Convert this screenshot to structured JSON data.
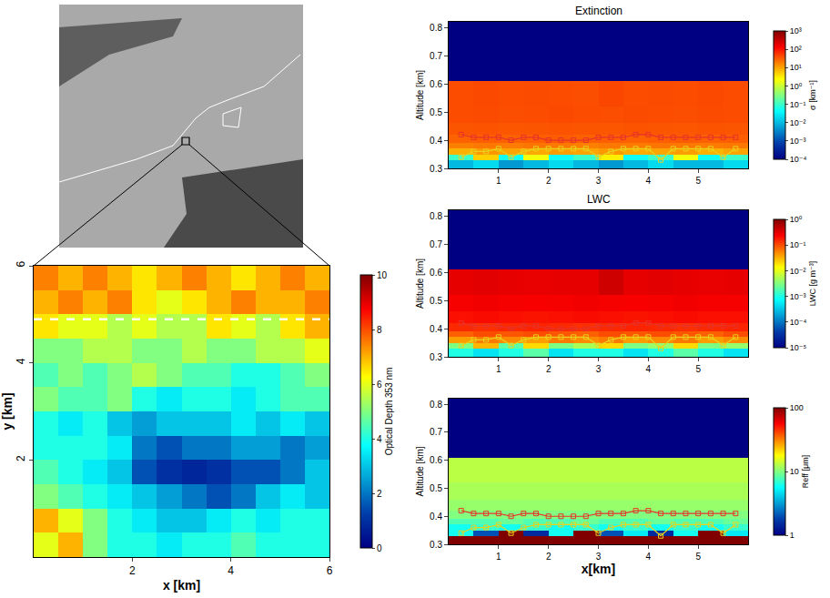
{
  "chart_data": [
    {
      "type": "heatmap",
      "x_label": "x [km]",
      "y_label": "y [km]",
      "xlim": [
        0,
        6
      ],
      "ylim": [
        0,
        6
      ],
      "xticks": [
        2,
        4,
        6
      ],
      "yticks": [
        2,
        4,
        6
      ],
      "color": "Jet",
      "x_edges": [
        0,
        0.5,
        1,
        1.5,
        2,
        2.5,
        3,
        3.5,
        4,
        4.5,
        5,
        5.5,
        6
      ],
      "y_edges": [
        0,
        0.5,
        1,
        1.5,
        2,
        2.5,
        3,
        3.5,
        4,
        4.5,
        5,
        5.5,
        6
      ],
      "z": [
        [
          6,
          7,
          5,
          4,
          4,
          3.5,
          4,
          4,
          4.5,
          4,
          4,
          4
        ],
        [
          7,
          6,
          5,
          4,
          3.5,
          3,
          3,
          3.5,
          4,
          3.5,
          4,
          4
        ],
        [
          5,
          4.5,
          4,
          3.5,
          3,
          2.5,
          2,
          1.5,
          2,
          3,
          3.5,
          3
        ],
        [
          4.5,
          4,
          3.5,
          3,
          1.5,
          1,
          0.8,
          1,
          1.5,
          1.5,
          2,
          3
        ],
        [
          4,
          4,
          4,
          3.5,
          2,
          1.5,
          2,
          2,
          2.5,
          2.5,
          2,
          2.5
        ],
        [
          4,
          3.5,
          4,
          3,
          2.5,
          3,
          3,
          3,
          3.5,
          3,
          3.5,
          3
        ],
        [
          5,
          4.5,
          4.5,
          5,
          4,
          3.5,
          4,
          4,
          3.5,
          4,
          4.5,
          4.5
        ],
        [
          4.5,
          5,
          4.5,
          5,
          5.5,
          5,
          4.5,
          4.5,
          4,
          4,
          4.5,
          5
        ],
        [
          5,
          5,
          5.5,
          5.5,
          5,
          5,
          5.5,
          5,
          5,
          5.5,
          5.5,
          6
        ],
        [
          6.5,
          6,
          6,
          5.5,
          6,
          5.5,
          5.5,
          6.5,
          6,
          5.5,
          6.5,
          7
        ],
        [
          7,
          7.5,
          7,
          7.5,
          6.5,
          6,
          6.5,
          7,
          7.5,
          7,
          7,
          7.5
        ],
        [
          7.5,
          7,
          7.5,
          7,
          6.5,
          7,
          7.5,
          7,
          6.5,
          7,
          7.5,
          7
        ]
      ],
      "colorbar": {
        "title": "Optical Depth 353 nm",
        "range": [
          0,
          10
        ],
        "ticks": [
          0,
          2,
          4,
          6,
          8,
          10
        ]
      },
      "transect_y": 4.9
    },
    {
      "type": "heatmap",
      "title": "Extinction",
      "log": true,
      "y_label": "Altitude [km]",
      "xlim": [
        0,
        6
      ],
      "ylim": [
        0.3,
        0.82
      ],
      "xticks": [
        1,
        2,
        3,
        4,
        5
      ],
      "yticks": [
        0.3,
        0.4,
        0.5,
        0.6,
        0.7,
        0.8
      ],
      "color": "Jet",
      "x_edges": [
        0,
        0.5,
        1,
        1.5,
        2,
        2.5,
        3,
        3.5,
        4,
        4.5,
        5,
        5.5,
        6
      ],
      "y_edges": [
        0.3,
        0.33,
        0.35,
        0.37,
        0.39,
        0.42,
        0.46,
        0.52,
        0.61,
        0.82
      ],
      "z": [
        [
          0.01,
          0.02,
          0.005,
          0.01,
          0.02,
          0.01,
          0.005,
          0.01,
          0.02,
          0.01,
          0.01,
          0.02
        ],
        [
          0.1,
          5,
          0.05,
          2,
          0.05,
          0.1,
          3,
          0.05,
          0.1,
          2,
          0.05,
          0.1
        ],
        [
          8,
          12,
          10,
          9,
          11,
          10,
          12,
          9,
          10,
          11,
          8,
          10
        ],
        [
          18,
          20,
          19,
          21,
          20,
          18,
          20,
          19,
          21,
          20,
          19,
          20
        ],
        [
          28,
          30,
          29,
          30,
          31,
          29,
          30,
          28,
          30,
          31,
          29,
          30
        ],
        [
          35,
          36,
          34,
          35,
          36,
          35,
          34,
          36,
          35,
          34,
          36,
          35
        ],
        [
          40,
          41,
          39,
          40,
          42,
          40,
          39,
          41,
          40,
          39,
          41,
          40
        ],
        [
          40,
          42,
          40,
          41,
          40,
          39,
          44,
          40,
          41,
          40,
          42,
          40
        ],
        [
          0.0001,
          0.0001,
          0.0001,
          0.0001,
          0.0001,
          0.0001,
          0.0001,
          0.0001,
          0.0001,
          0.0001,
          0.0001,
          0.0001
        ]
      ],
      "colorbar": {
        "title": "σ [km⁻¹]",
        "range": [
          0.0001,
          1000
        ],
        "ticks": [
          {
            "value": 0.0001,
            "label": "10⁻⁴"
          },
          {
            "value": 0.001,
            "label": "10⁻³"
          },
          {
            "value": 0.01,
            "label": "10⁻²"
          },
          {
            "value": 0.1,
            "label": "10⁻¹"
          },
          {
            "value": 1,
            "label": "10⁰"
          },
          {
            "value": 10,
            "label": "10¹"
          },
          {
            "value": 100,
            "label": "10²"
          },
          {
            "value": 1000,
            "label": "10³"
          }
        ]
      },
      "series": [
        {
          "color": "#e8332a",
          "marker": "square",
          "x": [
            0.25,
            0.5,
            0.75,
            1,
            1.25,
            1.5,
            1.75,
            2,
            2.25,
            2.5,
            2.75,
            3,
            3.25,
            3.5,
            3.75,
            4,
            4.25,
            4.5,
            4.75,
            5,
            5.25,
            5.5,
            5.75
          ],
          "values": [
            0.42,
            0.41,
            0.41,
            0.41,
            0.4,
            0.41,
            0.41,
            0.4,
            0.4,
            0.4,
            0.4,
            0.41,
            0.41,
            0.41,
            0.42,
            0.42,
            0.41,
            0.41,
            0.41,
            0.41,
            0.41,
            0.41,
            0.41
          ]
        },
        {
          "color": "#e8d21d",
          "marker": "square",
          "x": [
            0.25,
            0.5,
            0.75,
            1,
            1.25,
            1.5,
            1.75,
            2,
            2.25,
            2.5,
            2.75,
            3,
            3.25,
            3.5,
            3.75,
            4,
            4.25,
            4.5,
            4.75,
            5,
            5.25,
            5.5,
            5.75
          ],
          "values": [
            0.34,
            0.36,
            0.36,
            0.37,
            0.34,
            0.36,
            0.37,
            0.37,
            0.37,
            0.37,
            0.37,
            0.34,
            0.36,
            0.37,
            0.37,
            0.37,
            0.33,
            0.37,
            0.37,
            0.37,
            0.37,
            0.34,
            0.37
          ]
        }
      ]
    },
    {
      "type": "heatmap",
      "title": "LWC",
      "log": true,
      "y_label": "Altitude [km]",
      "xlim": [
        0,
        6
      ],
      "ylim": [
        0.3,
        0.82
      ],
      "xticks": [
        1,
        2,
        3,
        4,
        5
      ],
      "yticks": [
        0.3,
        0.4,
        0.5,
        0.6,
        0.7,
        0.8
      ],
      "color": "Jet",
      "x_edges": [
        0,
        0.5,
        1,
        1.5,
        2,
        2.5,
        3,
        3.5,
        4,
        4.5,
        5,
        5.5,
        6
      ],
      "y_edges": [
        0.3,
        0.33,
        0.35,
        0.37,
        0.39,
        0.42,
        0.46,
        0.52,
        0.61,
        0.82
      ],
      "z": [
        [
          0.001,
          0.0005,
          0.001,
          0.002,
          0.0005,
          0.001,
          0.001,
          0.0005,
          0.001,
          0.002,
          0.001,
          0.0005
        ],
        [
          0.003,
          0.03,
          0.002,
          0.02,
          0.003,
          0.005,
          0.02,
          0.003,
          0.004,
          0.02,
          0.003,
          0.004
        ],
        [
          0.04,
          0.06,
          0.05,
          0.04,
          0.06,
          0.05,
          0.06,
          0.04,
          0.05,
          0.06,
          0.04,
          0.05
        ],
        [
          0.08,
          0.1,
          0.09,
          0.1,
          0.09,
          0.08,
          0.1,
          0.09,
          0.1,
          0.09,
          0.08,
          0.1
        ],
        [
          0.15,
          0.14,
          0.15,
          0.16,
          0.15,
          0.14,
          0.15,
          0.16,
          0.15,
          0.14,
          0.15,
          0.16
        ],
        [
          0.2,
          0.21,
          0.2,
          0.19,
          0.2,
          0.21,
          0.2,
          0.19,
          0.2,
          0.21,
          0.2,
          0.2
        ],
        [
          0.25,
          0.26,
          0.25,
          0.24,
          0.25,
          0.26,
          0.25,
          0.24,
          0.25,
          0.26,
          0.25,
          0.25
        ],
        [
          0.3,
          0.31,
          0.3,
          0.29,
          0.3,
          0.3,
          0.4,
          0.3,
          0.31,
          0.3,
          0.29,
          0.3
        ],
        [
          1e-05,
          1e-05,
          1e-05,
          1e-05,
          1e-05,
          1e-05,
          1e-05,
          1e-05,
          1e-05,
          1e-05,
          1e-05,
          1e-05
        ]
      ],
      "colorbar": {
        "title": "LWC [g m⁻³]",
        "range": [
          1e-05,
          1
        ],
        "ticks": [
          {
            "value": 1e-05,
            "label": "10⁻⁵"
          },
          {
            "value": 0.0001,
            "label": "10⁻⁴"
          },
          {
            "value": 0.001,
            "label": "10⁻³"
          },
          {
            "value": 0.01,
            "label": "10⁻²"
          },
          {
            "value": 0.1,
            "label": "10⁻¹"
          },
          {
            "value": 1,
            "label": "10⁰"
          }
        ]
      },
      "series": [
        {
          "color": "#e8332a",
          "marker": "square",
          "x": [
            0.25,
            0.5,
            0.75,
            1,
            1.25,
            1.5,
            1.75,
            2,
            2.25,
            2.5,
            2.75,
            3,
            3.25,
            3.5,
            3.75,
            4,
            4.25,
            4.5,
            4.75,
            5,
            5.25,
            5.5,
            5.75
          ],
          "values": [
            0.42,
            0.41,
            0.41,
            0.41,
            0.4,
            0.41,
            0.41,
            0.4,
            0.4,
            0.4,
            0.4,
            0.41,
            0.41,
            0.41,
            0.42,
            0.42,
            0.41,
            0.41,
            0.41,
            0.41,
            0.41,
            0.41,
            0.41
          ]
        },
        {
          "color": "#e8d21d",
          "marker": "square",
          "x": [
            0.25,
            0.5,
            0.75,
            1,
            1.25,
            1.5,
            1.75,
            2,
            2.25,
            2.5,
            2.75,
            3,
            3.25,
            3.5,
            3.75,
            4,
            4.25,
            4.5,
            4.75,
            5,
            5.25,
            5.5,
            5.75
          ],
          "values": [
            0.34,
            0.36,
            0.36,
            0.37,
            0.34,
            0.36,
            0.37,
            0.37,
            0.37,
            0.37,
            0.37,
            0.34,
            0.36,
            0.37,
            0.37,
            0.37,
            0.33,
            0.37,
            0.37,
            0.37,
            0.37,
            0.34,
            0.37
          ]
        }
      ]
    },
    {
      "type": "heatmap",
      "log": true,
      "x_label": "x[km]",
      "y_label": "Altitude [km]",
      "xlim": [
        0,
        6
      ],
      "ylim": [
        0.3,
        0.82
      ],
      "xticks": [
        1,
        2,
        3,
        4,
        5
      ],
      "yticks": [
        0.3,
        0.4,
        0.5,
        0.6,
        0.7,
        0.8
      ],
      "color": "Jet",
      "x_edges": [
        0,
        0.5,
        1,
        1.5,
        2,
        2.5,
        3,
        3.5,
        4,
        4.5,
        5,
        5.5,
        6
      ],
      "y_edges": [
        0.3,
        0.33,
        0.35,
        0.37,
        0.39,
        0.42,
        0.46,
        0.52,
        0.61,
        0.82
      ],
      "z": [
        [
          100,
          100,
          100,
          100,
          100,
          100,
          100,
          100,
          100,
          100,
          100,
          100
        ],
        [
          6,
          2,
          100,
          1.5,
          6,
          100,
          2,
          5,
          1.5,
          6,
          100,
          5
        ],
        [
          6,
          7,
          6,
          7,
          6,
          7,
          6,
          7,
          6,
          7,
          6,
          7
        ],
        [
          8,
          8,
          9,
          8,
          8,
          9,
          8,
          8,
          9,
          8,
          8,
          9
        ],
        [
          10,
          10,
          10,
          10,
          10,
          10,
          10,
          10,
          10,
          10,
          10,
          10
        ],
        [
          11,
          11,
          11,
          11,
          11,
          11,
          11,
          11,
          11,
          11,
          11,
          11
        ],
        [
          12,
          12,
          12,
          12,
          12,
          12,
          12,
          12,
          12,
          12,
          12,
          12
        ],
        [
          13,
          13,
          13,
          13,
          13,
          13,
          13,
          13,
          13,
          13,
          13,
          13
        ],
        [
          1,
          1,
          1,
          1,
          1,
          1,
          1,
          1,
          1,
          1,
          1,
          1
        ]
      ],
      "colorbar": {
        "title": "Reff [μm]",
        "range": [
          1,
          100
        ],
        "ticks": [
          1,
          10,
          100
        ]
      },
      "series": [
        {
          "color": "#e8332a",
          "marker": "square",
          "x": [
            0.25,
            0.5,
            0.75,
            1,
            1.25,
            1.5,
            1.75,
            2,
            2.25,
            2.5,
            2.75,
            3,
            3.25,
            3.5,
            3.75,
            4,
            4.25,
            4.5,
            4.75,
            5,
            5.25,
            5.5,
            5.75
          ],
          "values": [
            0.42,
            0.41,
            0.41,
            0.41,
            0.4,
            0.41,
            0.41,
            0.4,
            0.4,
            0.4,
            0.4,
            0.41,
            0.41,
            0.41,
            0.42,
            0.42,
            0.41,
            0.41,
            0.41,
            0.41,
            0.41,
            0.41,
            0.41
          ]
        },
        {
          "color": "#e8d21d",
          "marker": "square",
          "x": [
            0.25,
            0.5,
            0.75,
            1,
            1.25,
            1.5,
            1.75,
            2,
            2.25,
            2.5,
            2.75,
            3,
            3.25,
            3.5,
            3.75,
            4,
            4.25,
            4.5,
            4.75,
            5,
            5.25,
            5.5,
            5.75
          ],
          "values": [
            0.34,
            0.36,
            0.36,
            0.37,
            0.34,
            0.36,
            0.37,
            0.37,
            0.37,
            0.37,
            0.37,
            0.34,
            0.36,
            0.37,
            0.37,
            0.37,
            0.33,
            0.37,
            0.37,
            0.37,
            0.37,
            0.34,
            0.37
          ]
        }
      ]
    }
  ]
}
